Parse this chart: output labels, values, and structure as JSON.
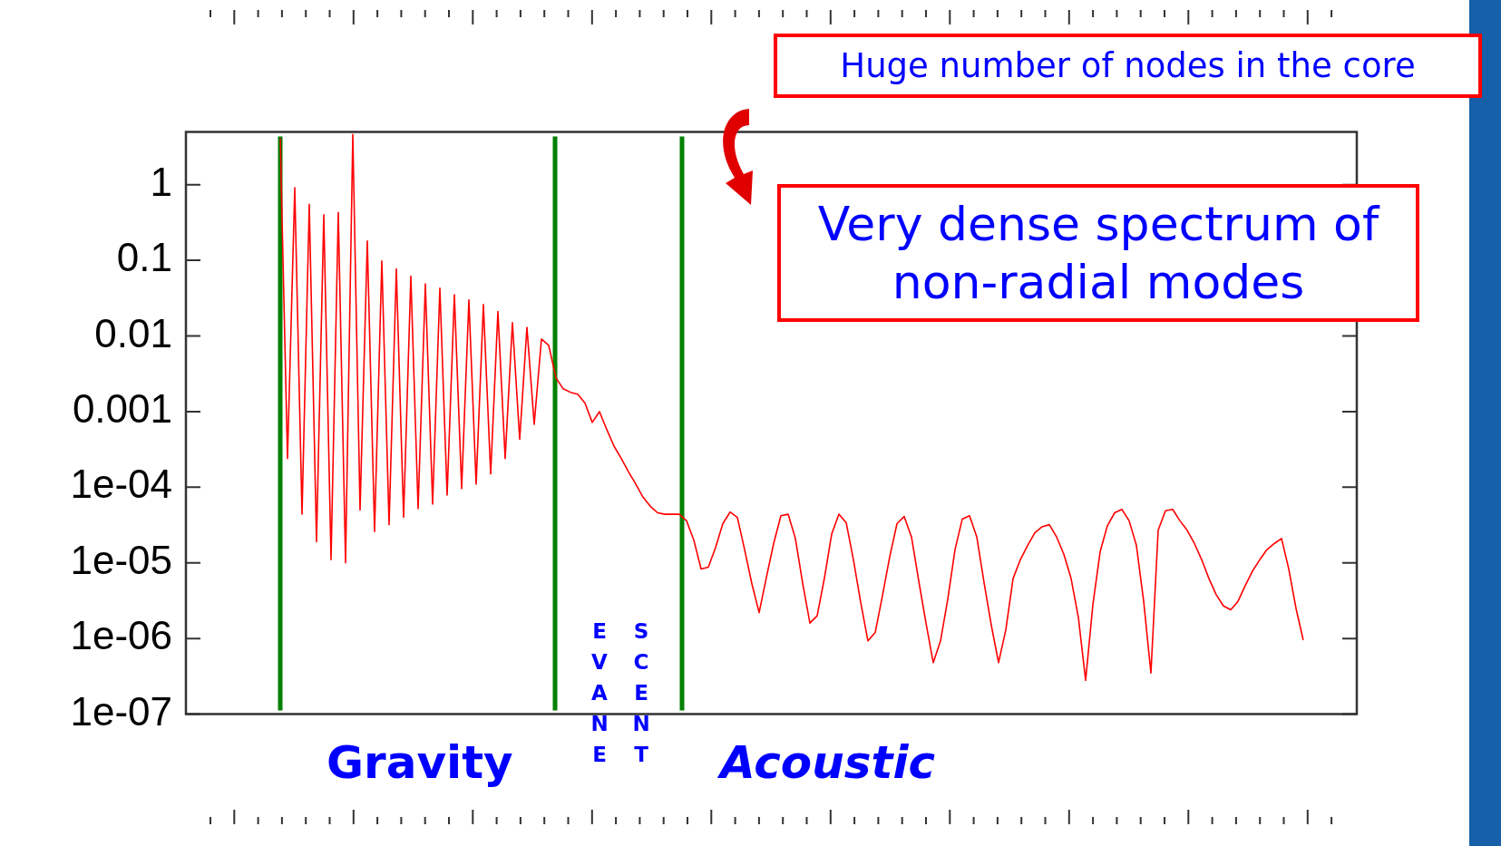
{
  "chart_data": {
    "type": "line",
    "log": "y",
    "marker": "none",
    "tick_labels": "y",
    "categories": [
      null,
      null,
      null,
      null,
      null,
      null,
      null,
      null,
      null,
      null,
      null,
      null,
      null,
      null,
      null,
      null,
      null,
      null,
      null,
      null,
      null,
      null,
      null,
      null,
      null,
      null,
      null,
      null,
      null,
      null,
      null,
      null,
      null,
      null,
      null,
      null,
      null,
      null,
      null,
      null,
      null,
      null,
      null,
      null,
      null,
      null,
      null,
      null,
      null,
      null,
      null,
      null,
      null,
      null,
      null,
      null,
      null,
      null,
      null,
      null,
      null,
      null,
      null,
      null,
      null,
      null,
      null,
      null,
      null,
      null,
      null,
      null,
      null,
      null,
      null,
      null,
      null,
      null,
      null,
      null,
      null,
      null,
      null,
      null,
      null,
      null,
      null,
      null,
      null,
      null,
      null,
      null,
      null,
      null,
      null,
      null,
      null,
      null,
      null,
      null,
      null,
      null,
      null,
      null,
      null,
      null,
      null,
      null,
      null,
      null,
      null,
      null,
      null,
      null,
      null,
      null,
      null,
      null,
      null,
      null,
      null,
      null,
      null,
      null,
      null,
      null,
      null,
      null,
      null,
      null,
      null,
      null,
      null,
      null,
      null,
      null,
      null,
      null,
      null,
      null,
      null,
      null
    ],
    "ylim": [
      1e-07,
      5
    ],
    "yticks": [
      {
        "value": 1e-07,
        "label": "1e-07"
      },
      {
        "value": 1e-06,
        "label": "1e-06"
      },
      {
        "value": 1e-05,
        "label": "1e-05"
      },
      {
        "value": 0.0001,
        "label": "1e-04"
      },
      0.001,
      0.01,
      0.1,
      1
    ],
    "annotations": [
      "Huge number of nodes in the core",
      "Very dense spectrum of non-radial modes",
      "Gravity",
      "EVANE",
      "SCENT",
      "Acoustic"
    ],
    "series": [
      {
        "color": "#ff0000",
        "values": [
          4.1,
          0.00024,
          0.91,
          4.4e-05,
          0.55,
          1.9e-05,
          0.4,
          1.1e-05,
          0.43,
          1e-05,
          4.6,
          5e-05,
          0.18,
          2.6e-05,
          0.098,
          3.2e-05,
          0.077,
          4e-05,
          0.062,
          5.2e-05,
          0.049,
          6e-05,
          0.043,
          7.9e-05,
          0.035,
          9.6e-05,
          0.03,
          0.00011,
          0.026,
          0.00015,
          0.021,
          0.00024,
          0.015,
          0.00043,
          0.013,
          0.00068,
          0.0091,
          0.0075,
          0.0028,
          0.002,
          0.0018,
          0.0017,
          0.0013,
          0.00072,
          0.001,
          0.00058,
          0.00035,
          0.00024,
          0.00016,
          0.00011,
          7.4e-05,
          5.6e-05,
          4.6e-05,
          4.4e-05,
          4.4e-05,
          4.4e-05,
          3.6e-05,
          2e-05,
          8.3e-06,
          8.8e-06,
          1.6e-05,
          3.3e-05,
          4.7e-05,
          4e-05,
          1.5e-05,
          5.3e-06,
          2.2e-06,
          6.4e-06,
          1.8e-05,
          4.2e-05,
          4.4e-05,
          2.1e-05,
          5.4e-06,
          1.6e-06,
          2e-06,
          6.3e-06,
          2.4e-05,
          4.4e-05,
          3.4e-05,
          1.1e-05,
          3e-06,
          9.3e-07,
          1.2e-06,
          3.7e-06,
          1.2e-05,
          3.3e-05,
          4.1e-05,
          2.2e-05,
          5.8e-06,
          1.6e-06,
          4.8e-07,
          9.3e-07,
          3.3e-06,
          1.5e-05,
          3.8e-05,
          4.2e-05,
          2.2e-05,
          5.5e-06,
          1.5e-06,
          4.8e-07,
          1.3e-06,
          6.2e-06,
          1.1e-05,
          1.7e-05,
          2.5e-05,
          3e-05,
          3.2e-05,
          2.2e-05,
          1.3e-05,
          6.2e-06,
          1.9e-06,
          2.8e-07,
          2.8e-06,
          1.4e-05,
          3.1e-05,
          4.6e-05,
          5.1e-05,
          3.6e-05,
          1.7e-05,
          3.1e-06,
          3.5e-07,
          2.7e-05,
          4.9e-05,
          5.1e-05,
          3.6e-05,
          2.7e-05,
          1.8e-05,
          1.1e-05,
          6.2e-06,
          3.8e-06,
          2.7e-06,
          2.4e-06,
          3.1e-06,
          5e-06,
          7.8e-06,
          1.1e-05,
          1.5e-05,
          1.8e-05,
          2.1e-05,
          8.3e-06,
          2.5e-06,
          9.5e-07
        ]
      }
    ]
  }
}
